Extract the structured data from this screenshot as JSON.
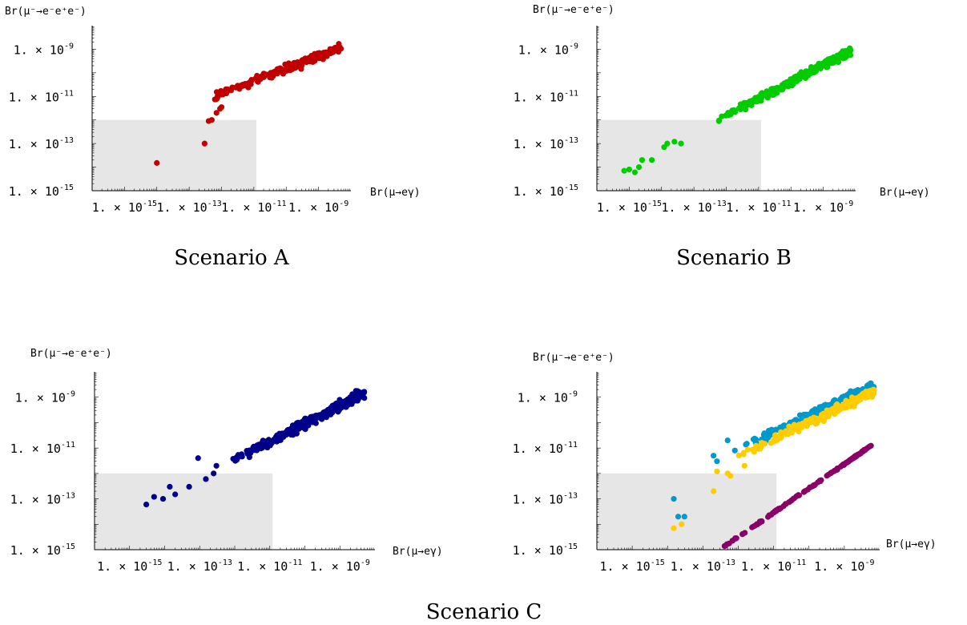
{
  "chart_data": [
    {
      "type": "scatter",
      "caption": "Scenario A",
      "xlabel": "Br(μ→eγ)",
      "ylabel": "Br(μ⁻→e⁻e⁺e⁻)",
      "x_scale": "log",
      "y_scale": "log",
      "xlim": [
        1e-16,
        1e-08
      ],
      "ylim": [
        1e-15,
        1e-08
      ],
      "x_ticks": [
        "1.×10⁻¹⁵",
        "1.×10⁻¹³",
        "1.×10⁻¹¹",
        "1.×10⁻⁹"
      ],
      "y_ticks": [
        "1.×10⁻¹⁵",
        "1.×10⁻¹³",
        "1.×10⁻¹¹",
        "1.×10⁻⁹"
      ],
      "excluded_region": {
        "x": [
          1e-16,
          1.2e-11
        ],
        "y": [
          1e-15,
          1e-12
        ],
        "color": "#e6e6e6"
      },
      "series": [
        {
          "color": "#c00000",
          "x_range": [
            5e-13,
            5e-09
          ],
          "y_range": [
            9e-12,
            1.2e-09
          ],
          "slope": 0.93,
          "spread": 0.12,
          "n": 220,
          "points": [
            [
              1e-14,
              1.5e-14
            ],
            [
              3e-13,
              1e-13
            ],
            [
              4e-13,
              9e-13
            ],
            [
              5e-13,
              1e-12
            ],
            [
              7e-13,
              2e-12
            ],
            [
              9e-13,
              3e-12
            ],
            [
              1e-12,
              3.5e-12
            ]
          ]
        }
      ]
    },
    {
      "type": "scatter",
      "caption": "Scenario B",
      "xlabel": "Br(μ→eγ)",
      "ylabel": "Br(μ⁻→e⁻e⁺e⁻)",
      "x_scale": "log",
      "y_scale": "log",
      "xlim": [
        1e-16,
        1e-08
      ],
      "ylim": [
        1e-15,
        1e-08
      ],
      "x_ticks": [
        "1.×10⁻¹⁵",
        "1.×10⁻¹³",
        "1.×10⁻¹¹",
        "1.×10⁻⁹"
      ],
      "y_ticks": [
        "1.×10⁻¹⁵",
        "1.×10⁻¹³",
        "1.×10⁻¹¹",
        "1.×10⁻⁹"
      ],
      "excluded_region": {
        "x": [
          1e-16,
          1.2e-11
        ],
        "y": [
          1e-15,
          1e-12
        ],
        "color": "#e6e6e6"
      },
      "series": [
        {
          "color": "#00cc00",
          "x_range": [
            3e-13,
            7e-09
          ],
          "y_range": [
            7e-13,
            8e-10
          ],
          "slope": 0.93,
          "spread": 0.12,
          "n": 320,
          "points": [
            [
              7e-16,
              7e-15
            ],
            [
              1e-15,
              8e-15
            ],
            [
              1.5e-15,
              6e-15
            ],
            [
              2e-15,
              1e-14
            ],
            [
              2.5e-15,
              2e-14
            ],
            [
              5e-15,
              2e-14
            ],
            [
              1.2e-14,
              7e-14
            ],
            [
              1.5e-14,
              1e-13
            ],
            [
              2.5e-14,
              1.2e-13
            ],
            [
              4e-14,
              1e-13
            ]
          ]
        }
      ]
    },
    {
      "type": "scatter",
      "caption": "Scenario C",
      "xlabel": "Br(μ→eγ)",
      "ylabel": "Br(μ⁻→e⁻e⁺e⁻)",
      "x_scale": "log",
      "y_scale": "log",
      "xlim": [
        1e-16,
        1e-08
      ],
      "ylim": [
        1e-15,
        1e-08
      ],
      "x_ticks": [
        "1.×10⁻¹⁵",
        "1.×10⁻¹³",
        "1.×10⁻¹¹",
        "1.×10⁻⁹"
      ],
      "y_ticks": [
        "1.×10⁻¹⁵",
        "1.×10⁻¹³",
        "1.×10⁻¹¹",
        "1.×10⁻⁹"
      ],
      "excluded_region": {
        "x": [
          1e-16,
          1.2e-11
        ],
        "y": [
          1e-15,
          1e-12
        ],
        "color": "#e6e6e6"
      },
      "series": [
        {
          "color": "#00008b",
          "x_range": [
            8e-13,
            5e-09
          ],
          "y_range": [
            3e-12,
            1.5e-09
          ],
          "slope": 0.95,
          "spread": 0.13,
          "n": 300,
          "points": [
            [
              3e-15,
              6e-14
            ],
            [
              5e-15,
              1.2e-13
            ],
            [
              9e-15,
              1e-13
            ],
            [
              1.4e-14,
              3e-13
            ],
            [
              2e-14,
              1.5e-13
            ],
            [
              5e-14,
              3e-13
            ],
            [
              9e-14,
              4e-12
            ],
            [
              1.5e-13,
              6e-13
            ],
            [
              2.5e-13,
              1e-12
            ],
            [
              3e-13,
              2e-12
            ]
          ]
        }
      ]
    },
    {
      "type": "scatter",
      "caption": "",
      "xlabel": "Br(μ→eγ)",
      "ylabel": "Br(μ⁻→e⁻e⁺e⁻)",
      "x_scale": "log",
      "y_scale": "log",
      "xlim": [
        1e-16,
        1e-08
      ],
      "ylim": [
        1e-15,
        1e-08
      ],
      "x_ticks": [
        "1.×10⁻¹⁵",
        "1.×10⁻¹³",
        "1.×10⁻¹¹",
        "1.×10⁻⁹"
      ],
      "y_ticks": [
        "1.×10⁻¹⁵",
        "1.×10⁻¹³",
        "1.×10⁻¹¹",
        "1.×10⁻⁹"
      ],
      "excluded_region": {
        "x": [
          1e-16,
          1.2e-11
        ],
        "y": [
          1e-15,
          1e-12
        ],
        "color": "#e6e6e6"
      },
      "series": [
        {
          "color": "#0099cc",
          "x_range": [
            1e-12,
            7e-09
          ],
          "y_range": [
            1e-11,
            3e-09
          ],
          "slope": 0.9,
          "spread": 0.12,
          "n": 200,
          "points": [
            [
              1.5e-14,
              1e-13
            ],
            [
              3e-14,
              2e-14
            ],
            [
              2e-14,
              2e-14
            ],
            [
              2e-13,
              5e-12
            ],
            [
              2.5e-13,
              3e-12
            ],
            [
              5e-13,
              2e-11
            ],
            [
              8e-13,
              8e-12
            ]
          ]
        },
        {
          "color": "#ffcc00",
          "x_range": [
            1e-12,
            7e-09
          ],
          "y_range": [
            5e-12,
            1.6e-09
          ],
          "slope": 0.9,
          "spread": 0.12,
          "n": 200,
          "points": [
            [
              1.5e-14,
              7e-15
            ],
            [
              2.5e-14,
              1e-14
            ],
            [
              2e-13,
              2e-13
            ],
            [
              2.5e-13,
              1.2e-12
            ],
            [
              5e-13,
              1e-12
            ],
            [
              6e-13,
              8e-13
            ],
            [
              1.5e-12,
              2e-12
            ]
          ]
        },
        {
          "color": "#8b0066",
          "x_range": [
            3e-13,
            6e-09
          ],
          "y_range": [
            1e-15,
            1.3e-11
          ],
          "slope": 1.0,
          "spread": 0.02,
          "n": 140,
          "points": []
        }
      ]
    }
  ],
  "caption_c": "Scenario C"
}
